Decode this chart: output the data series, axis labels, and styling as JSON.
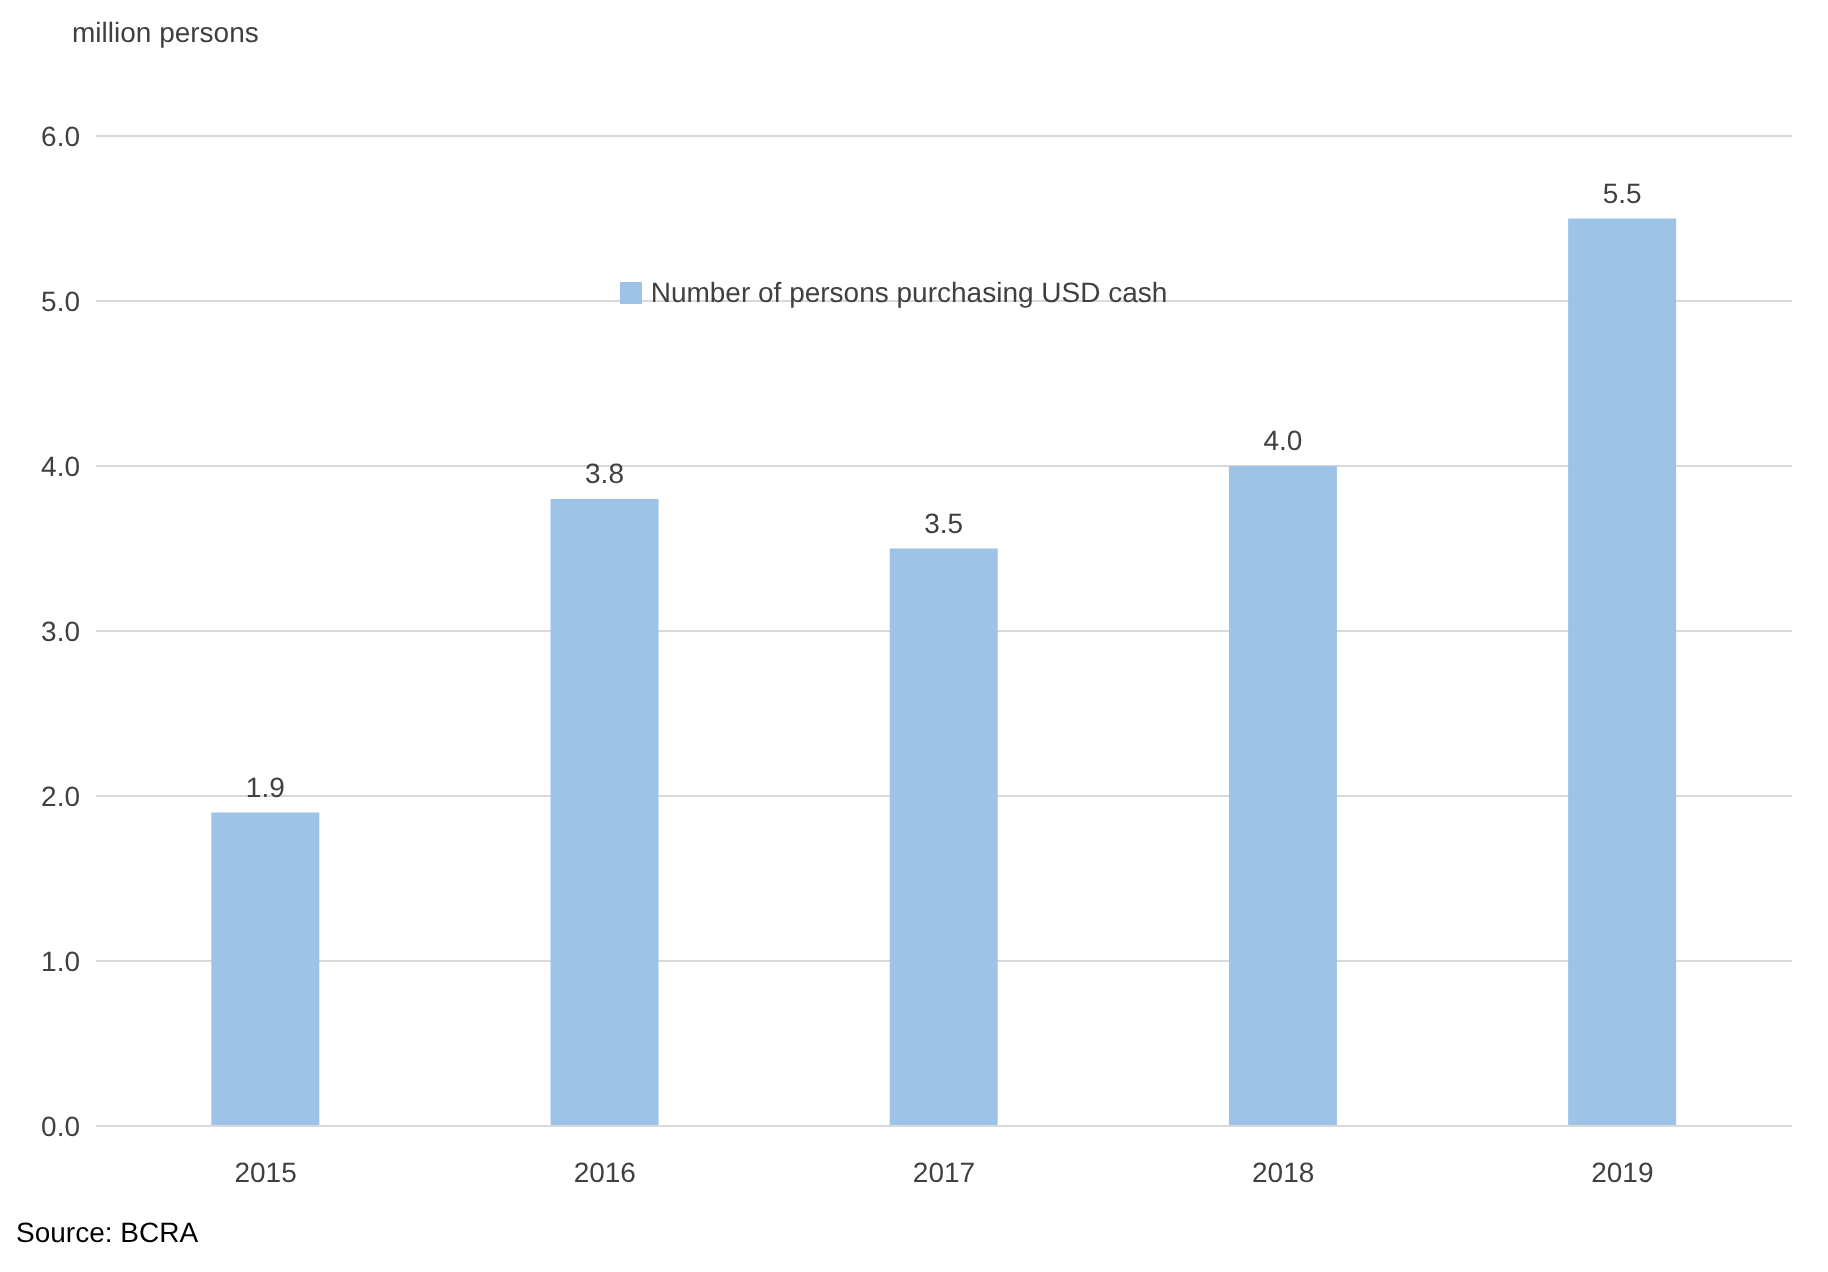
{
  "chart_data": {
    "type": "bar",
    "ylabel": "million persons",
    "categories": [
      "2015",
      "2016",
      "2017",
      "2018",
      "2019"
    ],
    "series": [
      {
        "name": "Number of persons purchasing USD cash",
        "color": "#9dc3e6",
        "values": [
          1.9,
          3.8,
          3.5,
          4.0,
          5.5
        ],
        "value_labels": [
          "1.9",
          "3.8",
          "3.5",
          "4.0",
          "5.5"
        ]
      }
    ],
    "ylim": [
      0,
      6
    ],
    "yticks": [
      {
        "value": 0,
        "label": "0.0"
      },
      {
        "value": 1,
        "label": "1.0"
      },
      {
        "value": 2,
        "label": "2.0"
      },
      {
        "value": 3,
        "label": "3.0"
      },
      {
        "value": 4,
        "label": "4.0"
      },
      {
        "value": 5,
        "label": "5.0"
      },
      {
        "value": 6,
        "label": "6.0"
      }
    ],
    "grid": "y",
    "legend": "top",
    "annotations": [
      "Source: BCRA"
    ]
  }
}
